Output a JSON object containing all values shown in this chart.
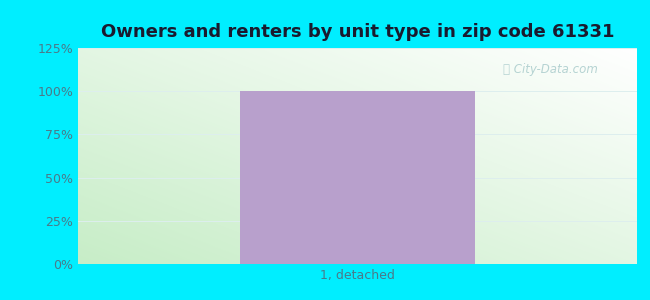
{
  "title": "Owners and renters by unit type in zip code 61331",
  "categories": [
    "1, detached"
  ],
  "values": [
    100
  ],
  "bar_color": "#b8a0cc",
  "bar_width": 0.42,
  "ylim": [
    0,
    125
  ],
  "yticks": [
    0,
    25,
    50,
    75,
    100,
    125
  ],
  "yticklabels": [
    "0%",
    "25%",
    "50%",
    "75%",
    "100%",
    "125%"
  ],
  "title_fontsize": 13,
  "title_color": "#1a1a2e",
  "tick_color": "#4a7a8a",
  "watermark_text": "City-Data.com",
  "outer_bg_color": "#00eeff",
  "grad_top_color": "#f5fffa",
  "grad_bottom_color": "#c8eec8",
  "grad_topleft_color": "#e8f8f0",
  "watermark_color": "#aacccc",
  "grid_color": "#ddeeee",
  "xlabel_color": "#4a7a8a"
}
